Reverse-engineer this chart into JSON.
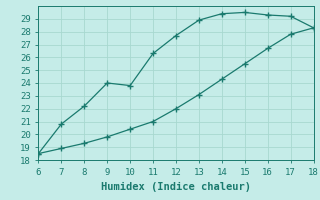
{
  "title": "",
  "xlabel": "Humidex (Indice chaleur)",
  "ylabel": "",
  "background_color": "#c5ece8",
  "line_color": "#1a7a6e",
  "marker": "+",
  "upper_x": [
    6,
    7,
    8,
    9,
    10,
    11,
    12,
    13,
    14,
    15,
    16,
    17,
    18
  ],
  "upper_y": [
    18.5,
    20.8,
    22.2,
    24.0,
    23.8,
    26.3,
    27.7,
    28.9,
    29.4,
    29.5,
    29.3,
    29.2,
    28.3
  ],
  "lower_x": [
    6,
    7,
    8,
    9,
    10,
    11,
    12,
    13,
    14,
    15,
    16,
    17,
    18
  ],
  "lower_y": [
    18.5,
    18.9,
    19.3,
    19.8,
    20.4,
    21.0,
    22.0,
    23.1,
    24.3,
    25.5,
    26.7,
    27.8,
    28.3
  ],
  "xlim": [
    6,
    18
  ],
  "ylim": [
    18,
    30
  ],
  "xticks": [
    6,
    7,
    8,
    9,
    10,
    11,
    12,
    13,
    14,
    15,
    16,
    17,
    18
  ],
  "yticks": [
    18,
    19,
    20,
    21,
    22,
    23,
    24,
    25,
    26,
    27,
    28,
    29
  ],
  "grid_color": "#a8d8d0",
  "tick_color": "#1a7a6e",
  "label_color": "#1a7a6e",
  "font_size": 6.5,
  "xlabel_fontsize": 7.5,
  "linewidth": 0.9,
  "markersize": 4,
  "markeredgewidth": 1.0
}
